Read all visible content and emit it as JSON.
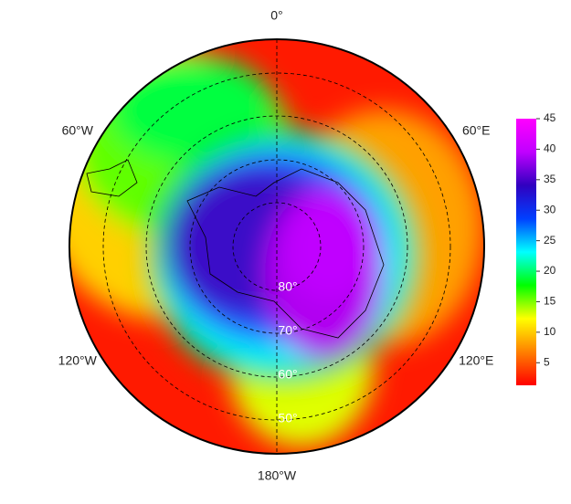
{
  "map": {
    "longitude_labels": [
      "0°",
      "60°E",
      "120°E",
      "180°W",
      "120°W",
      "60°W"
    ],
    "latitude_labels": [
      "80°",
      "70°",
      "60°",
      "50°"
    ],
    "colorbar": {
      "range": [
        1.3,
        45
      ],
      "ticks": [
        5,
        10,
        15,
        20,
        25,
        30,
        35,
        40,
        45
      ],
      "colors": [
        "#ff0000",
        "#ff8000",
        "#ffff00",
        "#00ff00",
        "#00ffff",
        "#0040ff",
        "#3000c0",
        "#c000ff",
        "#ff00ff"
      ]
    }
  }
}
